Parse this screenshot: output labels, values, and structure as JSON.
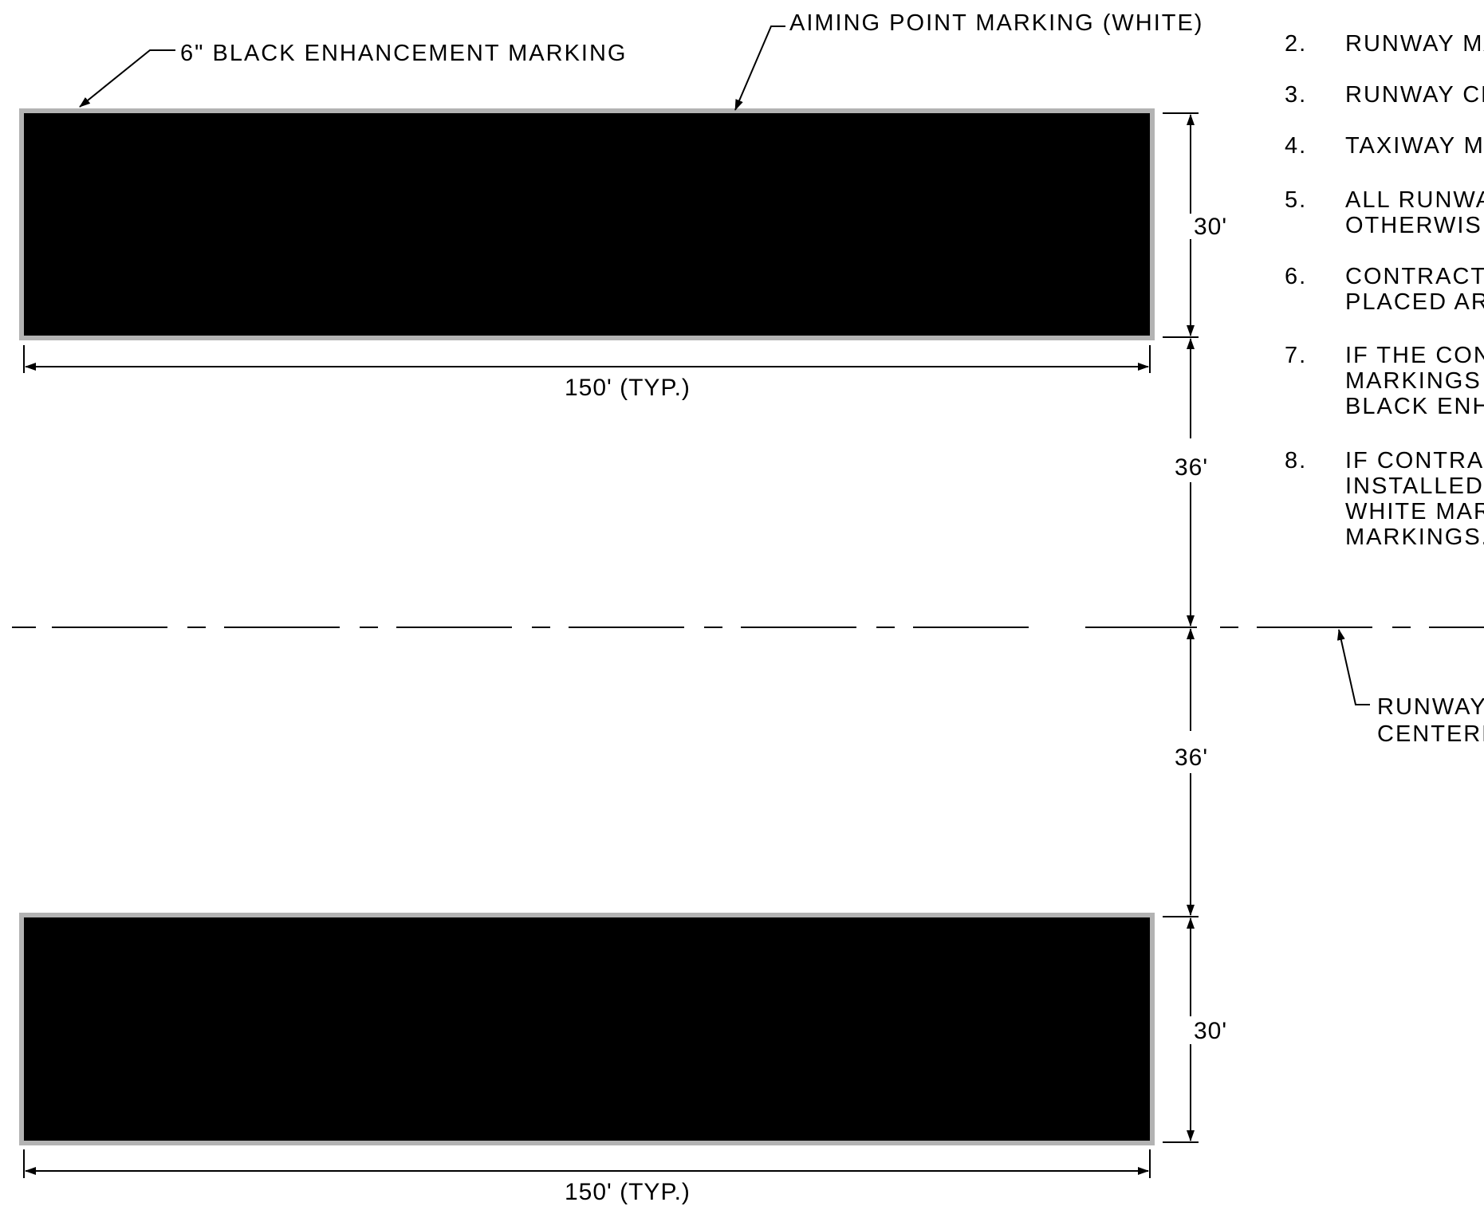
{
  "labels": {
    "black_enhancement": "6\" BLACK ENHANCEMENT MARKING",
    "aiming_point": "AIMING POINT MARKING (WHITE)",
    "runway_centerline_line1": "RUNWAY",
    "runway_centerline_line2": "CENTERLIN"
  },
  "dimensions": {
    "marking_width": "150' (TYP.)",
    "marking_length": "30'",
    "offset_from_centerline": "36'"
  },
  "notes": [
    {
      "num": "2.",
      "lines": [
        "RUNWAY MAR"
      ]
    },
    {
      "num": "3.",
      "lines": [
        "RUNWAY CHE"
      ]
    },
    {
      "num": "4.",
      "lines": [
        "TAXIWAY MAR"
      ]
    },
    {
      "num": "5.",
      "lines": [
        "ALL RUNWAY",
        "OTHERWISE N"
      ]
    },
    {
      "num": "6.",
      "lines": [
        "CONTRACTOR",
        "PLACED AROU"
      ]
    },
    {
      "num": "7.",
      "lines": [
        "IF THE CONT",
        "MARKINGS IN",
        "BLACK ENHAN"
      ]
    },
    {
      "num": "8.",
      "lines": [
        "IF CONTRACTO",
        "INSTALLED, C",
        "WHITE MARKIN",
        "MARKINGS."
      ]
    }
  ],
  "colors": {
    "marking_fill": "#000000",
    "enhancement_border": "#b3b3b3",
    "line": "#000000",
    "background": "#ffffff"
  }
}
